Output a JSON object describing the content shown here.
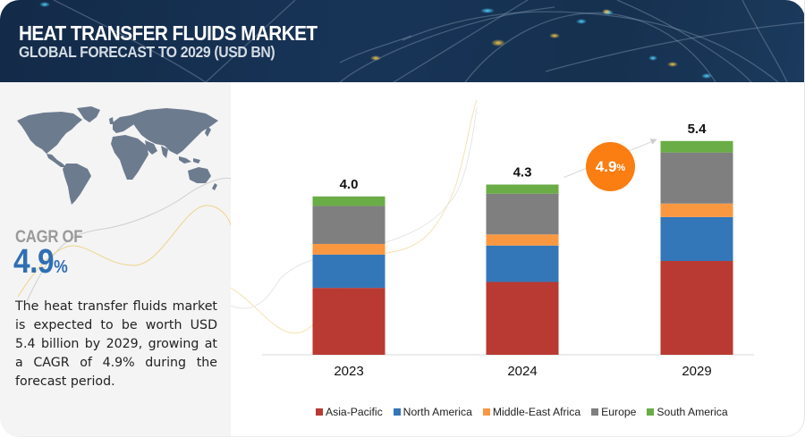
{
  "header": {
    "title": "HEAT TRANSFER FLUIDS MARKET",
    "subtitle": "GLOBAL FORECAST TO 2029 (USD BN)"
  },
  "left_panel": {
    "map_icon": "world-map",
    "cagr_label": "CAGR OF",
    "cagr_value": "4.9",
    "cagr_unit": "%",
    "description": "The heat transfer fluids market is expected to be worth USD 5.4 billion by 2029, growing at a CAGR of 4.9% during the forecast period."
  },
  "growth_badge": {
    "value": "4.9",
    "unit": "%",
    "color": "#fa7e12"
  },
  "colors": {
    "Asia-Pacific": "#b83a32",
    "North America": "#3477b9",
    "Middle-East Africa": "#fa9842",
    "Europe": "#7f7f7f",
    "South America": "#6aac46",
    "header_bg": "#16304f",
    "cagr_blue": "#2f6fb3"
  },
  "chart_data": {
    "type": "bar",
    "stacked": true,
    "title": "HEAT TRANSFER FLUIDS MARKET — GLOBAL FORECAST TO 2029 (USD BN)",
    "xlabel": "",
    "ylabel": "USD BN",
    "categories": [
      "2023",
      "2024",
      "2029"
    ],
    "totals": [
      "4.0",
      "4.3",
      "5.4"
    ],
    "ylim": [
      0,
      5.4
    ],
    "grid": false,
    "legend_position": "bottom",
    "series": [
      {
        "name": "Asia-Pacific",
        "values": [
          1.69,
          1.84,
          2.37
        ]
      },
      {
        "name": "North America",
        "values": [
          0.84,
          0.92,
          1.11
        ]
      },
      {
        "name": "Middle-East Africa",
        "values": [
          0.27,
          0.28,
          0.34
        ]
      },
      {
        "name": "Europe",
        "values": [
          0.96,
          1.03,
          1.29
        ]
      },
      {
        "name": "South America",
        "values": [
          0.24,
          0.23,
          0.29
        ]
      }
    ],
    "annotation": {
      "type": "cagr-arrow",
      "from": "2024",
      "to": "2029",
      "label": "4.9%"
    }
  }
}
